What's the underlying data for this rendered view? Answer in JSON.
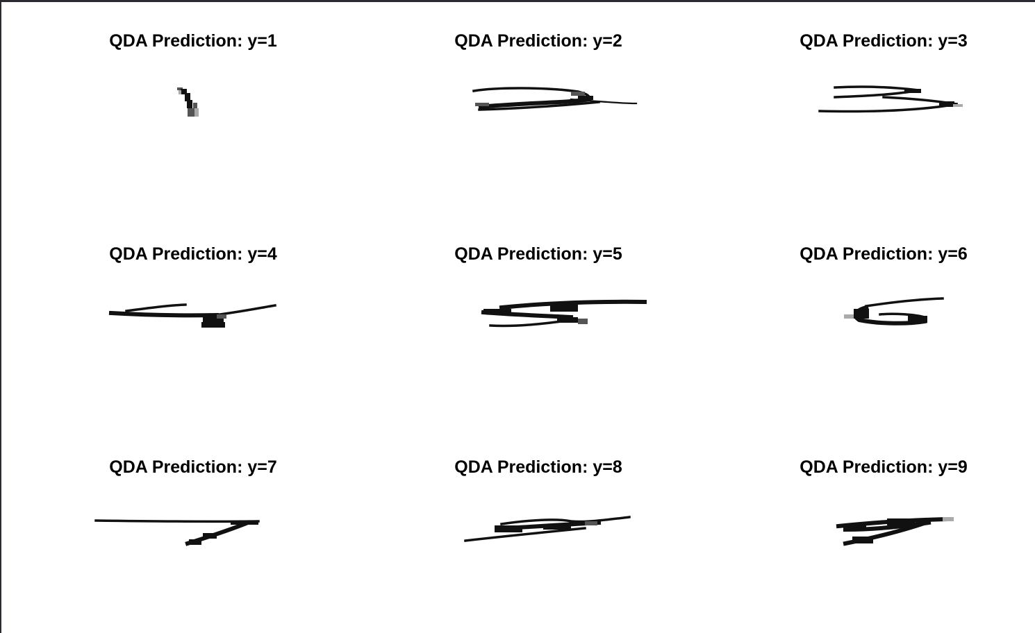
{
  "chart_data": {
    "type": "image-grid",
    "rows": 3,
    "cols": 3,
    "panels": [
      {
        "title": "QDA Prediction: y=1",
        "label": 1
      },
      {
        "title": "QDA Prediction: y=2",
        "label": 2
      },
      {
        "title": "QDA Prediction: y=3",
        "label": 3
      },
      {
        "title": "QDA Prediction: y=4",
        "label": 4
      },
      {
        "title": "QDA Prediction: y=5",
        "label": 5
      },
      {
        "title": "QDA Prediction: y=6",
        "label": 6
      },
      {
        "title": "QDA Prediction: y=7",
        "label": 7
      },
      {
        "title": "QDA Prediction: y=8",
        "label": 8
      },
      {
        "title": "QDA Prediction: y=9",
        "label": 9
      }
    ]
  }
}
